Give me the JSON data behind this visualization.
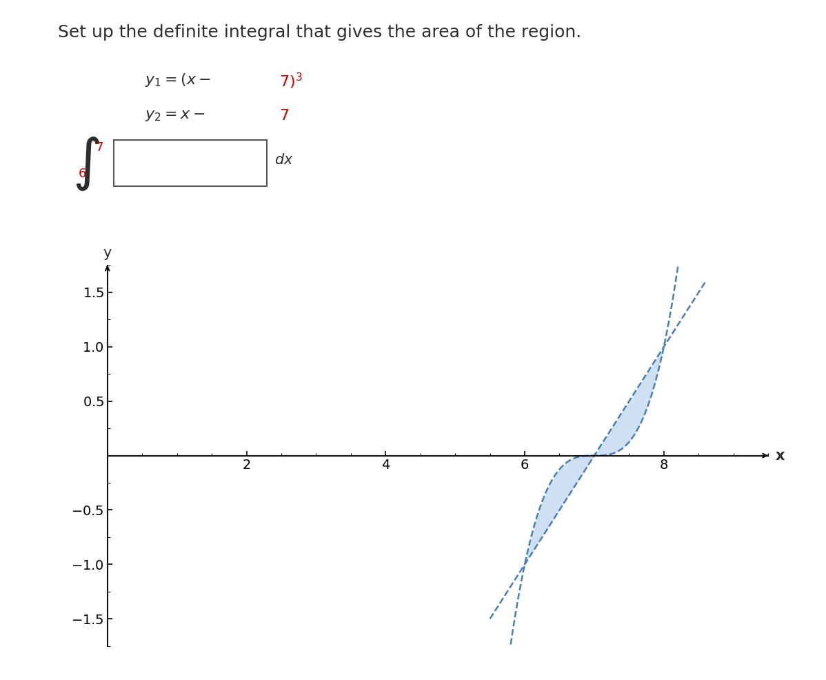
{
  "title": "Set up the definite integral that gives the area of the region.",
  "title_fontsize": 18,
  "xlabel": "x",
  "ylabel": "y",
  "xlim": [
    0,
    9.5
  ],
  "ylim": [
    -1.75,
    1.75
  ],
  "xticks": [
    2,
    4,
    6,
    8
  ],
  "yticks": [
    -1.5,
    -1.0,
    -0.5,
    0.5,
    1.0,
    1.5
  ],
  "fill_color": "#a8c8e8",
  "fill_alpha": 0.55,
  "line_color": "#4a7fb5",
  "line_width": 1.8,
  "bg_color": "#ffffff",
  "text_color": "#2d2d2d",
  "red_color": "#cc0000",
  "intersection_x1": 6.0,
  "intersection_x2": 8.0,
  "curve_xmin": 5.5,
  "curve_xmax": 8.6
}
